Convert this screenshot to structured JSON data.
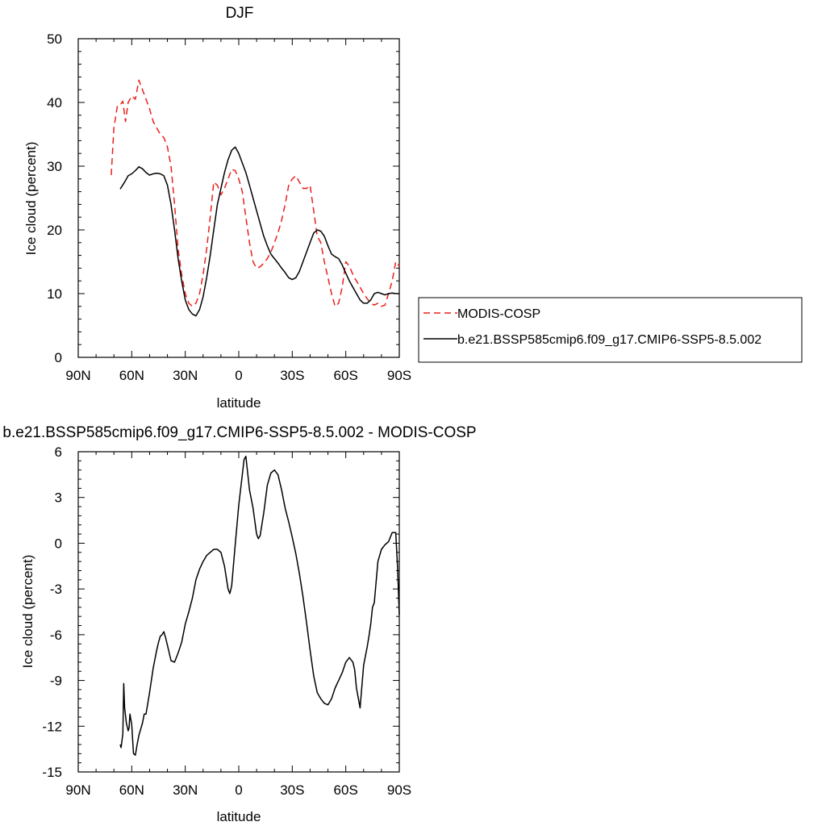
{
  "colors": {
    "obs": "#e8201c",
    "model": "#000000",
    "axis": "#000000",
    "background": "#ffffff"
  },
  "chart_data": [
    {
      "type": "line",
      "title": "DJF",
      "xlabel": "latitude",
      "ylabel": "Ice cloud (percent)",
      "xlim": [
        -90,
        90
      ],
      "ylim": [
        0,
        50
      ],
      "x_ticks": [
        -90,
        -60,
        -30,
        0,
        30,
        60,
        90
      ],
      "x_tick_labels": [
        "90N",
        "60N",
        "30N",
        "0",
        "30S",
        "60S",
        "90S"
      ],
      "y_ticks": [
        0,
        10,
        20,
        30,
        40,
        50
      ],
      "y_tick_labels": [
        "0",
        "10",
        "20",
        "30",
        "40",
        "50"
      ],
      "grid": false,
      "legend_position": "right",
      "series": [
        {
          "name": "MODIS-COSP",
          "style": "dashed",
          "color": "#e8201c",
          "x": [
            -71.5,
            -70,
            -68,
            -66,
            -65,
            -63.5,
            -62,
            -60,
            -58,
            -56,
            -54,
            -52,
            -50,
            -48,
            -46,
            -44,
            -42,
            -40,
            -38,
            -36,
            -34,
            -32,
            -30,
            -28,
            -26,
            -24,
            -22,
            -20,
            -18,
            -16,
            -14,
            -12,
            -10,
            -8,
            -6,
            -4,
            -2,
            0,
            2,
            4,
            6,
            8,
            10,
            12,
            14,
            16,
            18,
            20,
            22,
            24,
            26,
            28,
            30,
            32,
            34,
            36,
            38,
            40,
            42,
            44,
            46,
            48,
            50,
            52,
            54,
            56,
            58,
            60,
            62,
            64,
            65,
            66,
            68,
            70,
            72,
            74,
            76,
            78,
            80,
            82,
            84,
            86,
            88,
            90
          ],
          "y": [
            28.6,
            36,
            39.5,
            39.8,
            40.2,
            37,
            40,
            41,
            40.5,
            43.5,
            42,
            40.5,
            39,
            37,
            36,
            35,
            34.5,
            33,
            30,
            24,
            17,
            13,
            10,
            8.5,
            8,
            8.5,
            10,
            13,
            17,
            22,
            27.5,
            27,
            25.5,
            26.5,
            28,
            29.5,
            29.3,
            28,
            26,
            22,
            18,
            15,
            14,
            14.2,
            14.8,
            15.5,
            16.5,
            18,
            19.5,
            21.5,
            24,
            27,
            28,
            28.5,
            27.5,
            26.5,
            26.5,
            27,
            23,
            19,
            18,
            15,
            12.5,
            10,
            8,
            8.5,
            11,
            15,
            14.3,
            13,
            12.4,
            12,
            11,
            10,
            9.2,
            8.5,
            8.2,
            8.5,
            8,
            8.2,
            10,
            12,
            15,
            14.3
          ]
        },
        {
          "name": "b.e21.BSSP585cmip6.f09_g17.CMIP6-SSP5-8.5.002",
          "style": "solid",
          "color": "#000000",
          "x": [
            -66.5,
            -64,
            -62,
            -60,
            -58,
            -56,
            -54,
            -52,
            -50,
            -48,
            -46,
            -44,
            -42,
            -40,
            -38,
            -36,
            -34,
            -32,
            -30,
            -28,
            -26,
            -24,
            -22,
            -20,
            -18,
            -16,
            -14,
            -12,
            -10,
            -8,
            -6,
            -4,
            -2,
            0,
            2,
            4,
            6,
            8,
            10,
            12,
            14,
            16,
            18,
            20,
            22,
            24,
            26,
            28,
            30,
            32,
            34,
            36,
            38,
            40,
            42,
            44,
            46,
            48,
            50,
            52,
            54,
            56,
            58,
            60,
            62,
            64,
            66,
            68,
            70,
            72,
            74,
            76,
            78,
            80,
            82,
            84,
            86,
            88,
            90
          ],
          "y": [
            26.4,
            27.5,
            28.5,
            28.8,
            29.3,
            29.9,
            29.6,
            29,
            28.6,
            28.8,
            28.9,
            28.8,
            28.5,
            27,
            24,
            20,
            15.5,
            12,
            9,
            7.5,
            6.8,
            6.5,
            7.5,
            9.5,
            12.5,
            16,
            20,
            24,
            26.5,
            29,
            31,
            32.5,
            33,
            32,
            30.5,
            29,
            27,
            25,
            23,
            21,
            19,
            17.5,
            16.2,
            15.5,
            14.8,
            14,
            13.3,
            12.5,
            12.2,
            12.5,
            13.5,
            15,
            16.5,
            18,
            19.5,
            20,
            19.8,
            19,
            17.5,
            16.2,
            15.8,
            15.5,
            14.5,
            13.2,
            12,
            11,
            10,
            9,
            8.5,
            8.5,
            9,
            10,
            10.2,
            10,
            9.8,
            10,
            10.1,
            10,
            10
          ]
        }
      ]
    },
    {
      "type": "line",
      "title": "b.e21.BSSP585cmip6.f09_g17.CMIP6-SSP5-8.5.002 - MODIS-COSP",
      "xlabel": "latitude",
      "ylabel": "Ice cloud (percent)",
      "xlim": [
        -90,
        90
      ],
      "ylim": [
        -15,
        6
      ],
      "x_ticks": [
        -90,
        -60,
        -30,
        0,
        30,
        60,
        90
      ],
      "x_tick_labels": [
        "90N",
        "60N",
        "30N",
        "0",
        "30S",
        "60S",
        "90S"
      ],
      "y_ticks": [
        -15,
        -12,
        -9,
        -6,
        -3,
        0,
        3,
        6
      ],
      "y_tick_labels": [
        "-15",
        "-12",
        "-9",
        "-6",
        "-3",
        "0",
        "3",
        "6"
      ],
      "grid": false,
      "series": [
        {
          "style": "solid",
          "color": "#000000",
          "x": [
            -66.5,
            -66,
            -65,
            -64.5,
            -64,
            -63,
            -62,
            -61.5,
            -61,
            -60,
            -59,
            -58,
            -57,
            -56,
            -54,
            -53,
            -52,
            -50,
            -48,
            -46,
            -45,
            -44,
            -43,
            -42,
            -41,
            -40,
            -39,
            -38,
            -36,
            -34,
            -32,
            -30,
            -28,
            -26,
            -24,
            -22,
            -20,
            -18,
            -16,
            -14,
            -12,
            -10,
            -8,
            -6,
            -5,
            -4,
            -2,
            0,
            2,
            3,
            4,
            6,
            8,
            10,
            11,
            12,
            14,
            16,
            18,
            20,
            22,
            24,
            26,
            28,
            30,
            32,
            34,
            36,
            38,
            40,
            42,
            44,
            46,
            48,
            50,
            52,
            54,
            56,
            58,
            60,
            62,
            64,
            65,
            66,
            68,
            70,
            72,
            73,
            74,
            75,
            76,
            78,
            80,
            82,
            84,
            86,
            88,
            89,
            90
          ],
          "y": [
            -13.2,
            -13.4,
            -12.5,
            -9.2,
            -10.8,
            -11.8,
            -12.3,
            -12.1,
            -11.2,
            -11.9,
            -13.8,
            -13.9,
            -13.2,
            -12.6,
            -11.8,
            -11.2,
            -11.2,
            -9.8,
            -8.2,
            -7,
            -6.5,
            -6.1,
            -6,
            -5.8,
            -6.2,
            -6.7,
            -7.2,
            -7.7,
            -7.8,
            -7.2,
            -6.5,
            -5.3,
            -4.5,
            -3.6,
            -2.4,
            -1.7,
            -1.2,
            -0.8,
            -0.6,
            -0.4,
            -0.4,
            -0.6,
            -1.5,
            -3,
            -3.3,
            -2.8,
            -0.1,
            2.5,
            4.5,
            5.5,
            5.7,
            3.5,
            2.3,
            0.6,
            0.3,
            0.5,
            2,
            3.8,
            4.6,
            4.8,
            4.5,
            3.5,
            2.3,
            1.4,
            0.4,
            -0.7,
            -2,
            -3.5,
            -5.2,
            -7,
            -8.7,
            -9.8,
            -10.2,
            -10.5,
            -10.6,
            -10.2,
            -9.5,
            -9,
            -8.5,
            -7.8,
            -7.5,
            -7.8,
            -8.3,
            -9.5,
            -10.8,
            -8,
            -6.8,
            -6.1,
            -5.3,
            -4.2,
            -3.9,
            -1.2,
            -0.4,
            -0.1,
            0.1,
            0.7,
            0.7,
            -1.5,
            -4.7
          ]
        }
      ]
    }
  ]
}
